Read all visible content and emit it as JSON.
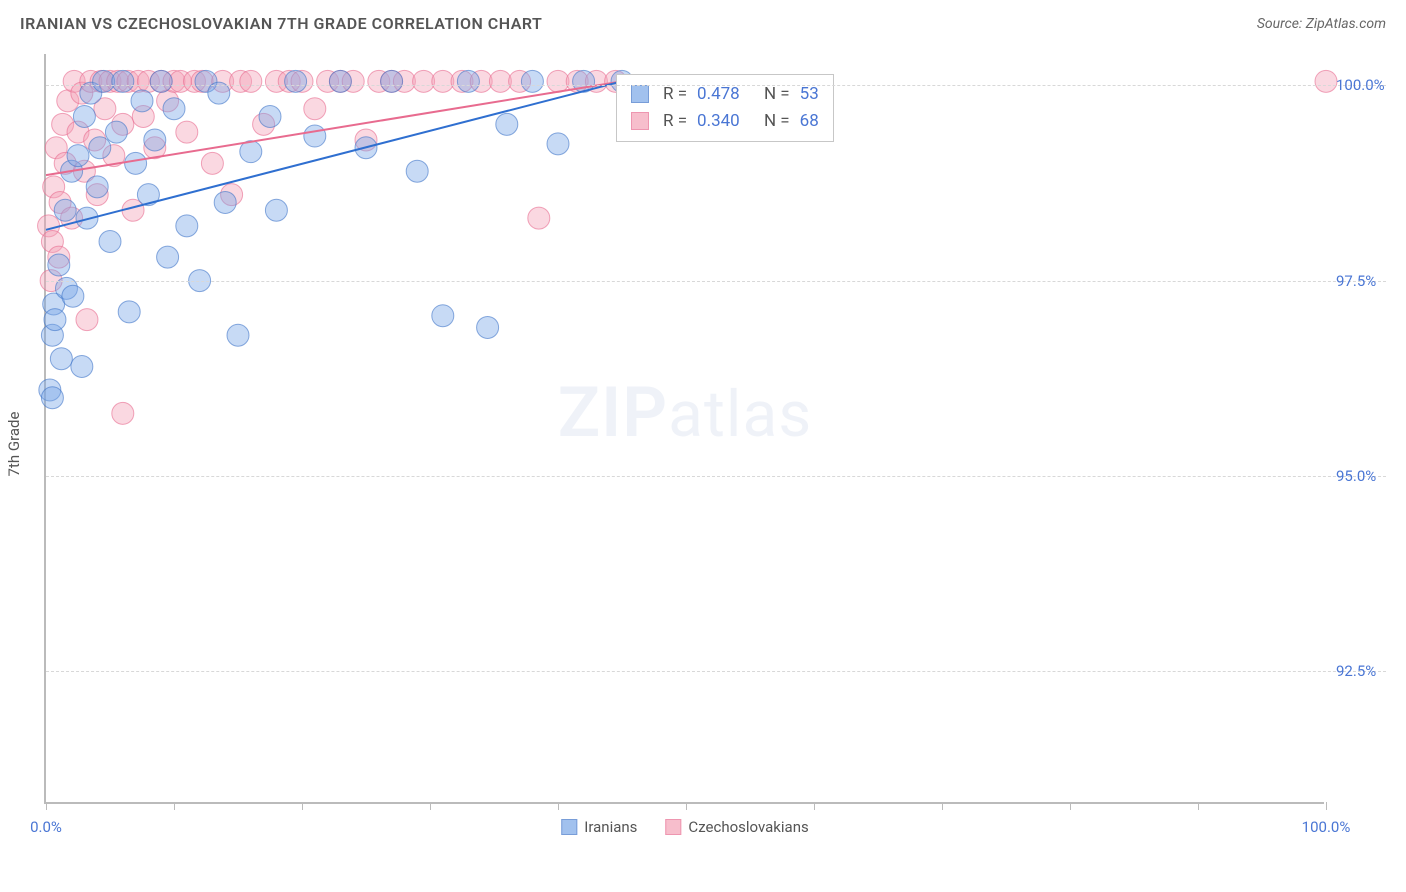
{
  "header": {
    "title": "IRANIAN VS CZECHOSLOVAKIAN 7TH GRADE CORRELATION CHART",
    "source": "Source: ZipAtlas.com"
  },
  "chart": {
    "type": "scatter",
    "y_axis_title": "7th Grade",
    "watermark_bold": "ZIP",
    "watermark_rest": "atlas",
    "xlim": [
      0,
      100
    ],
    "ylim": [
      90.8,
      100.4
    ],
    "x_ticks": [
      0,
      10,
      20,
      30,
      40,
      50,
      60,
      70,
      80,
      90,
      100
    ],
    "x_tick_labels": {
      "0": "0.0%",
      "100": "100.0%"
    },
    "y_ticks": [
      92.5,
      95.0,
      97.5,
      100.0
    ],
    "y_tick_labels": [
      "92.5%",
      "95.0%",
      "97.5%",
      "100.0%"
    ],
    "background_color": "#ffffff",
    "grid_color": "#d8d8d8",
    "axis_color": "#bbbbbb",
    "tick_label_color": "#4a76d4",
    "marker_radius": 11,
    "marker_opacity": 0.42,
    "line_width": 2,
    "series": {
      "iranians": {
        "label": "Iranians",
        "fill": "#7aa7e8",
        "stroke": "#3f74c8",
        "line_color": "#2f6fd0",
        "trend": {
          "x1": 0,
          "y1": 98.15,
          "x2": 45,
          "y2": 100.05
        },
        "stats": {
          "R_label": "R =",
          "R": "0.478",
          "N_label": "N =",
          "N": "53"
        },
        "points": [
          [
            0.3,
            96.1
          ],
          [
            0.5,
            96.0
          ],
          [
            0.5,
            96.8
          ],
          [
            0.6,
            97.2
          ],
          [
            0.7,
            97.0
          ],
          [
            1.0,
            97.7
          ],
          [
            1.2,
            96.5
          ],
          [
            1.5,
            98.4
          ],
          [
            1.6,
            97.4
          ],
          [
            2.0,
            98.9
          ],
          [
            2.1,
            97.3
          ],
          [
            2.5,
            99.1
          ],
          [
            2.8,
            96.4
          ],
          [
            3.0,
            99.6
          ],
          [
            3.2,
            98.3
          ],
          [
            3.5,
            99.9
          ],
          [
            4.0,
            98.7
          ],
          [
            4.2,
            99.2
          ],
          [
            4.5,
            100.05
          ],
          [
            5.0,
            98.0
          ],
          [
            5.5,
            99.4
          ],
          [
            6.0,
            100.05
          ],
          [
            6.5,
            97.1
          ],
          [
            7.0,
            99.0
          ],
          [
            7.5,
            99.8
          ],
          [
            8.0,
            98.6
          ],
          [
            8.5,
            99.3
          ],
          [
            9.0,
            100.05
          ],
          [
            9.5,
            97.8
          ],
          [
            10.0,
            99.7
          ],
          [
            11.0,
            98.2
          ],
          [
            12.0,
            97.5
          ],
          [
            12.5,
            100.05
          ],
          [
            13.5,
            99.9
          ],
          [
            14.0,
            98.5
          ],
          [
            15.0,
            96.8
          ],
          [
            16.0,
            99.15
          ],
          [
            17.5,
            99.6
          ],
          [
            18.0,
            98.4
          ],
          [
            19.5,
            100.05
          ],
          [
            21.0,
            99.35
          ],
          [
            23.0,
            100.05
          ],
          [
            25.0,
            99.2
          ],
          [
            27.0,
            100.05
          ],
          [
            29.0,
            98.9
          ],
          [
            31.0,
            97.05
          ],
          [
            33.0,
            100.05
          ],
          [
            34.5,
            96.9
          ],
          [
            36.0,
            99.5
          ],
          [
            38.0,
            100.05
          ],
          [
            40.0,
            99.25
          ],
          [
            42.0,
            100.05
          ],
          [
            45.0,
            100.05
          ]
        ]
      },
      "czech": {
        "label": "Czechoslovakians",
        "fill": "#f4a3b7",
        "stroke": "#e86b8f",
        "line_color": "#e86b8f",
        "trend": {
          "x1": 0,
          "y1": 98.85,
          "x2": 45,
          "y2": 100.05
        },
        "stats": {
          "R_label": "R =",
          "R": "0.340",
          "N_label": "N =",
          "N": "68"
        },
        "points": [
          [
            0.2,
            98.2
          ],
          [
            0.4,
            97.5
          ],
          [
            0.5,
            98.0
          ],
          [
            0.6,
            98.7
          ],
          [
            0.8,
            99.2
          ],
          [
            1.0,
            97.8
          ],
          [
            1.1,
            98.5
          ],
          [
            1.3,
            99.5
          ],
          [
            1.5,
            99.0
          ],
          [
            1.7,
            99.8
          ],
          [
            2.0,
            98.3
          ],
          [
            2.2,
            100.05
          ],
          [
            2.5,
            99.4
          ],
          [
            2.8,
            99.9
          ],
          [
            3.0,
            98.9
          ],
          [
            3.2,
            97.0
          ],
          [
            3.5,
            100.05
          ],
          [
            3.8,
            99.3
          ],
          [
            4.0,
            98.6
          ],
          [
            4.3,
            100.05
          ],
          [
            4.6,
            99.7
          ],
          [
            5.0,
            100.05
          ],
          [
            5.3,
            99.1
          ],
          [
            5.6,
            100.05
          ],
          [
            6.0,
            99.5
          ],
          [
            6.4,
            100.05
          ],
          [
            6.8,
            98.4
          ],
          [
            7.2,
            100.05
          ],
          [
            7.6,
            99.6
          ],
          [
            8.0,
            100.05
          ],
          [
            8.5,
            99.2
          ],
          [
            9.0,
            100.05
          ],
          [
            9.5,
            99.8
          ],
          [
            10.0,
            100.05
          ],
          [
            10.5,
            100.05
          ],
          [
            11.0,
            99.4
          ],
          [
            11.6,
            100.05
          ],
          [
            12.2,
            100.05
          ],
          [
            13.0,
            99.0
          ],
          [
            13.8,
            100.05
          ],
          [
            14.5,
            98.6
          ],
          [
            15.2,
            100.05
          ],
          [
            16.0,
            100.05
          ],
          [
            17.0,
            99.5
          ],
          [
            18.0,
            100.05
          ],
          [
            19.0,
            100.05
          ],
          [
            20.0,
            100.05
          ],
          [
            21.0,
            99.7
          ],
          [
            22.0,
            100.05
          ],
          [
            23.0,
            100.05
          ],
          [
            24.0,
            100.05
          ],
          [
            25.0,
            99.3
          ],
          [
            26.0,
            100.05
          ],
          [
            27.0,
            100.05
          ],
          [
            28.0,
            100.05
          ],
          [
            29.5,
            100.05
          ],
          [
            31.0,
            100.05
          ],
          [
            32.5,
            100.05
          ],
          [
            34.0,
            100.05
          ],
          [
            35.5,
            100.05
          ],
          [
            37.0,
            100.05
          ],
          [
            38.5,
            98.3
          ],
          [
            40.0,
            100.05
          ],
          [
            41.5,
            100.05
          ],
          [
            43.0,
            100.05
          ],
          [
            44.5,
            100.05
          ],
          [
            6.0,
            95.8
          ],
          [
            100.0,
            100.05
          ]
        ]
      }
    }
  }
}
